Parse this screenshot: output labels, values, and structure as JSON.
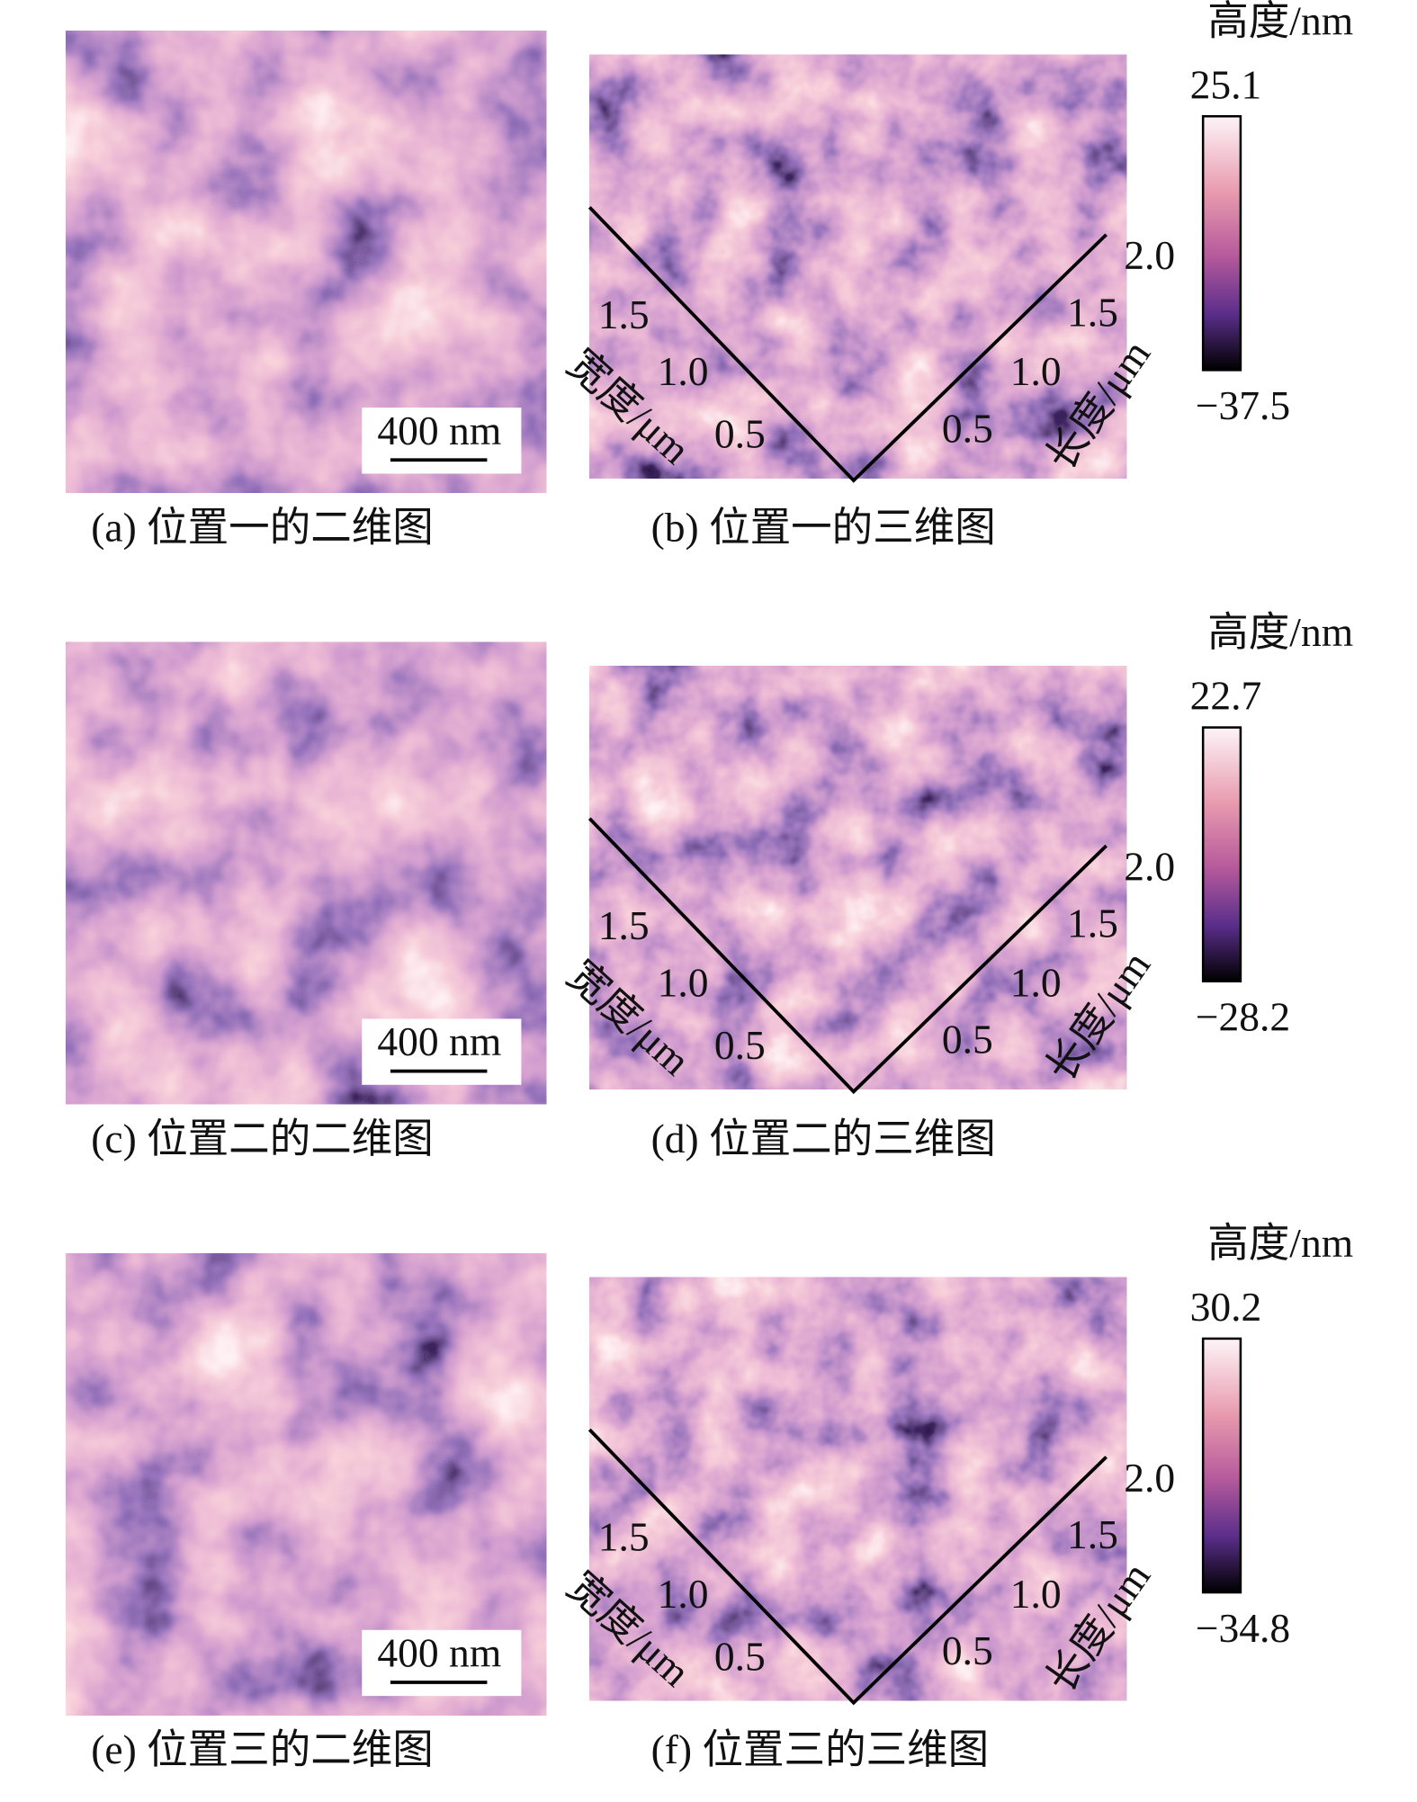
{
  "panels": [
    {
      "scalebar": "400 nm",
      "caption_2d": "(a) 位置一的二维图",
      "caption_3d": "(b) 位置一的三维图",
      "width_label": "宽度/μm",
      "width_ticks": [
        "1.5",
        "1.0",
        "0.5"
      ],
      "length_label": "长度/μm",
      "length_ticks": [
        "2.0",
        "1.5",
        "1.0",
        "0.5"
      ],
      "colorbar_title": "高度/nm",
      "colorbar_max": "25.1",
      "colorbar_min": "−37.5"
    },
    {
      "scalebar": "400 nm",
      "caption_2d": "(c) 位置二的二维图",
      "caption_3d": "(d) 位置二的三维图",
      "width_label": "宽度/μm",
      "width_ticks": [
        "1.5",
        "1.0",
        "0.5"
      ],
      "length_label": "长度/μm",
      "length_ticks": [
        "2.0",
        "1.5",
        "1.0",
        "0.5"
      ],
      "colorbar_title": "高度/nm",
      "colorbar_max": "22.7",
      "colorbar_min": "−28.2"
    },
    {
      "scalebar": "400 nm",
      "caption_2d": "(e) 位置三的二维图",
      "caption_3d": "(f) 位置三的三维图",
      "width_label": "宽度/μm",
      "width_ticks": [
        "1.5",
        "1.0",
        "0.5"
      ],
      "length_label": "长度/μm",
      "length_ticks": [
        "2.0",
        "1.5",
        "1.0",
        "0.5"
      ],
      "colorbar_title": "高度/nm",
      "colorbar_max": "30.2",
      "colorbar_min": "−34.8"
    }
  ]
}
